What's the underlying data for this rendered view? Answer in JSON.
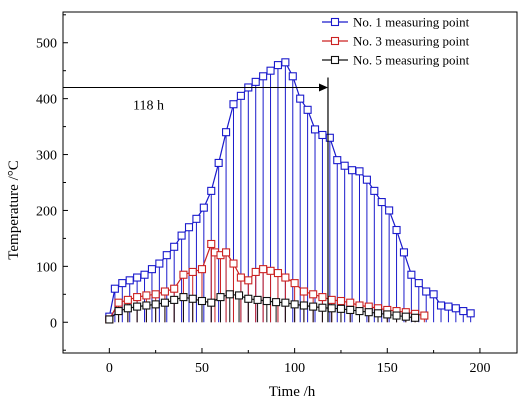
{
  "chart_data": {
    "type": "line",
    "title": "",
    "xlabel": "Time /h",
    "ylabel": "Temperature /°C",
    "xlim": [
      -25,
      220
    ],
    "ylim": [
      -55,
      555
    ],
    "xticks": [
      0,
      50,
      100,
      150,
      200
    ],
    "yticks": [
      0,
      100,
      200,
      300,
      400,
      500
    ],
    "legend_position": "top-right",
    "grid": false,
    "drop_lines": true,
    "annotation": {
      "label": "118 h",
      "x": 118,
      "y": 420
    },
    "series": [
      {
        "name": "No. 1 measuring point",
        "color": "#1a1acc",
        "marker": "square",
        "x": [
          0,
          3,
          7,
          11,
          15,
          19,
          23,
          27,
          31,
          35,
          39,
          43,
          47,
          51,
          55,
          59,
          63,
          67,
          71,
          75,
          79,
          83,
          87,
          91,
          95,
          99,
          103,
          107,
          111,
          115,
          119,
          123,
          127,
          131,
          135,
          139,
          143,
          147,
          151,
          155,
          159,
          163,
          167,
          171,
          175,
          179,
          183,
          187,
          191,
          195
        ],
        "y": [
          10,
          60,
          70,
          75,
          80,
          85,
          95,
          105,
          120,
          135,
          155,
          170,
          185,
          205,
          235,
          285,
          340,
          390,
          405,
          420,
          430,
          440,
          450,
          460,
          465,
          440,
          400,
          380,
          345,
          335,
          330,
          290,
          280,
          272,
          270,
          255,
          235,
          215,
          200,
          165,
          125,
          85,
          70,
          55,
          50,
          30,
          28,
          25,
          20,
          16
        ]
      },
      {
        "name": "No. 3 measuring point",
        "color": "#cc2222",
        "marker": "square",
        "x": [
          0,
          5,
          10,
          15,
          20,
          25,
          30,
          35,
          40,
          45,
          50,
          55,
          57,
          60,
          63,
          67,
          71,
          75,
          79,
          83,
          87,
          91,
          95,
          100,
          105,
          110,
          115,
          120,
          125,
          130,
          135,
          140,
          145,
          150,
          155,
          160,
          165,
          170
        ],
        "y": [
          5,
          35,
          40,
          45,
          48,
          50,
          55,
          60,
          85,
          90,
          95,
          140,
          125,
          120,
          125,
          105,
          80,
          75,
          90,
          95,
          92,
          88,
          80,
          70,
          55,
          50,
          45,
          40,
          38,
          35,
          30,
          28,
          25,
          22,
          20,
          18,
          15,
          12
        ]
      },
      {
        "name": "No. 5 measuring point",
        "color": "#111111",
        "marker": "square",
        "x": [
          0,
          5,
          10,
          15,
          20,
          25,
          30,
          35,
          40,
          45,
          50,
          55,
          60,
          65,
          70,
          75,
          80,
          85,
          90,
          95,
          100,
          105,
          110,
          115,
          120,
          125,
          130,
          135,
          140,
          145,
          150,
          155,
          160,
          165
        ],
        "y": [
          5,
          20,
          25,
          28,
          30,
          32,
          35,
          40,
          45,
          42,
          38,
          35,
          45,
          50,
          48,
          42,
          40,
          38,
          36,
          35,
          32,
          30,
          28,
          26,
          25,
          24,
          22,
          20,
          18,
          16,
          14,
          12,
          10,
          8
        ]
      }
    ]
  }
}
